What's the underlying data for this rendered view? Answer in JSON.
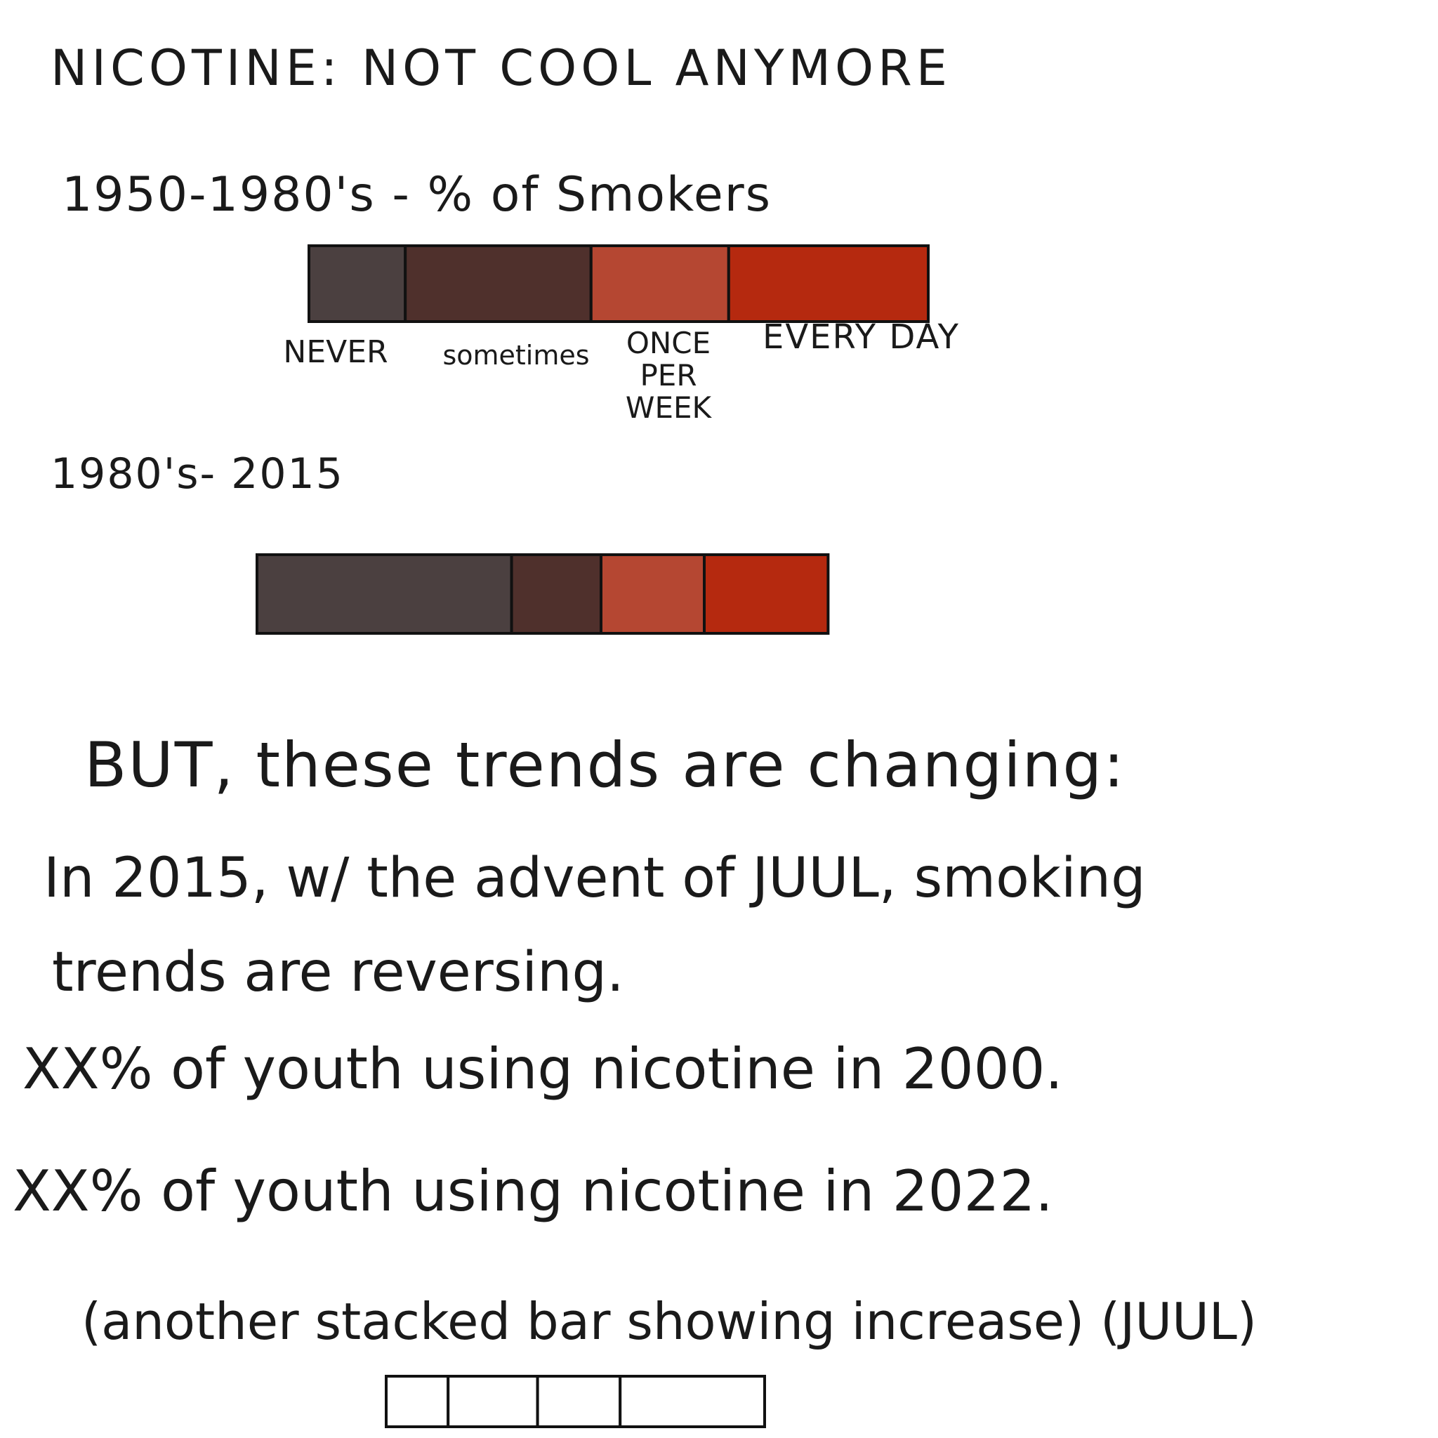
{
  "title": "NICOTINE: NOT COOL ANYMORE",
  "chart_data": [
    {
      "type": "bar",
      "stacked": true,
      "title": "1950-1980's - % of Smokers",
      "categories": [
        "NEVER",
        "sometimes",
        "ONCE PER WEEK",
        "EVERY DAY"
      ],
      "values": [
        14,
        27,
        20,
        29
      ],
      "colors": [
        "#4b4040",
        "#4f302c",
        "#b54732",
        "#b5290f"
      ]
    },
    {
      "type": "bar",
      "stacked": true,
      "title": "1980's- 2015",
      "categories": [
        "NEVER",
        "sometimes",
        "ONCE PER WEEK",
        "EVERY DAY"
      ],
      "values": [
        37,
        13,
        15,
        18
      ],
      "colors": [
        "#4b4040",
        "#4f302c",
        "#b54732",
        "#b5290f"
      ]
    },
    {
      "type": "bar",
      "stacked": true,
      "title": "",
      "values": [
        9,
        13,
        12,
        21
      ],
      "colors": [
        "#ffffff",
        "#ffffff",
        "#ffffff",
        "#ffffff"
      ]
    }
  ],
  "text": {
    "trends_changing": "BUT, these trends are changing:",
    "juul_line1": "In 2015, w/ the advent of JUUL, smoking",
    "juul_line2": "trends are reversing.",
    "youth_2000": "XX% of youth using nicotine in 2000.",
    "youth_2022": "XX% of youth using nicotine in 2022.",
    "another_bar": "(another stacked bar showing increase) (JUUL)"
  }
}
